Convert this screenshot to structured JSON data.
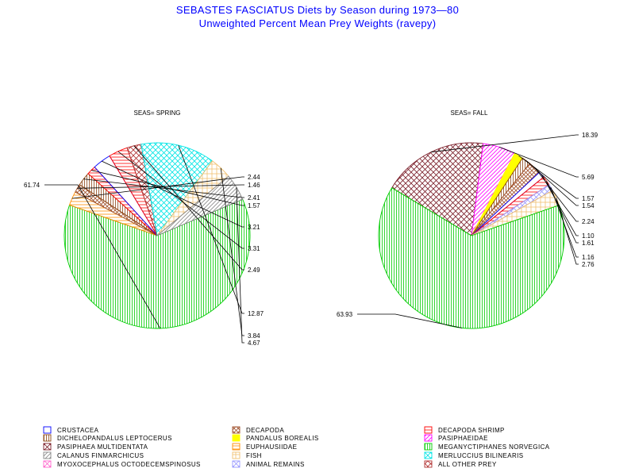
{
  "title": "SEBASTES FASCIATUS Diets by Season during 1973—80",
  "subtitle": "Unweighted Percent Mean Prey Weights (ravepy)",
  "categories": [
    {
      "key": "crustacea",
      "label": "CRUSTACEA",
      "color": "#0000ff",
      "pattern": "box"
    },
    {
      "key": "decapoda",
      "label": "DECAPODA",
      "color": "#a0522d",
      "pattern": "xbox"
    },
    {
      "key": "decapoda-shrimp",
      "label": "DECAPODA SHRIMP",
      "color": "#ff0000",
      "pattern": "hline"
    },
    {
      "key": "dichelopandalus",
      "label": "DICHELOPANDALUS LEPTOCERUS",
      "color": "#8b4513",
      "pattern": "vline"
    },
    {
      "key": "pandalus",
      "label": "PANDALUS BOREALIS",
      "color": "#ffff00",
      "pattern": "solid"
    },
    {
      "key": "pasiphaeidae",
      "label": "PASIPHAEIDAE",
      "color": "#ff00ff",
      "pattern": "diag"
    },
    {
      "key": "pasiphaea",
      "label": "PASIPHAEA MULTIDENTATA",
      "color": "#7b1f2a",
      "pattern": "cross"
    },
    {
      "key": "euphausiidae",
      "label": "EUPHAUSIIDAE",
      "color": "#ff8c00",
      "pattern": "hline"
    },
    {
      "key": "meganyctiphanes",
      "label": "MEGANYCTIPHANES NORVEGICA",
      "color": "#00cc00",
      "pattern": "vline"
    },
    {
      "key": "calanus",
      "label": "CALANUS FINMARCHICUS",
      "color": "#888888",
      "pattern": "diag"
    },
    {
      "key": "fish",
      "label": "FISH",
      "color": "#f0c070",
      "pattern": "grid"
    },
    {
      "key": "merluccius",
      "label": "MERLUCCIUS BILINEARIS",
      "color": "#00e5e5",
      "pattern": "cross"
    },
    {
      "key": "myoxocephalus",
      "label": "MYOXOCEPHALUS OCTODECEMSPINOSUS",
      "color": "#ff66cc",
      "pattern": "cross"
    },
    {
      "key": "animal-remains",
      "label": "ANIMAL REMAINS",
      "color": "#9999ff",
      "pattern": "cross"
    },
    {
      "key": "all-other",
      "label": "ALL OTHER PREY",
      "color": "#b03030",
      "pattern": "cross"
    }
  ],
  "chart_data": [
    {
      "type": "pie",
      "title": "SEAS= SPRING",
      "slices": [
        {
          "category": "meganyctiphanes",
          "value": 61.74,
          "label": "61.74"
        },
        {
          "category": "euphausiidae",
          "value": 2.44,
          "label": "2.44"
        },
        {
          "category": "decapoda",
          "value": 1.46,
          "label": "1.46"
        },
        {
          "category": "dichelopandalus",
          "value": 2.41,
          "label": "2.41"
        },
        {
          "category": "decapoda-shrimp",
          "value": 1.57,
          "label": "1.57"
        },
        {
          "category": "crustacea",
          "value": 3.21,
          "label": "3.21"
        },
        {
          "category": "decapoda-shrimp",
          "value": 3.31,
          "label": "3.31"
        },
        {
          "category": "all-other",
          "value": 2.49,
          "label": "2.49"
        },
        {
          "category": "merluccius",
          "value": 12.87,
          "label": "12.87"
        },
        {
          "category": "fish",
          "value": 3.84,
          "label": "3.84"
        },
        {
          "category": "calanus",
          "value": 4.67,
          "label": "4.67"
        }
      ]
    },
    {
      "type": "pie",
      "title": "SEAS= FALL",
      "slices": [
        {
          "category": "pasiphaea",
          "value": 18.39,
          "label": "18.39"
        },
        {
          "category": "pasiphaeidae",
          "value": 5.69,
          "label": "5.69"
        },
        {
          "category": "pandalus",
          "value": 1.57,
          "label": "1.57"
        },
        {
          "category": "dichelopandalus",
          "value": 1.54,
          "label": "1.54"
        },
        {
          "category": "decapoda",
          "value": 2.24,
          "label": "2.24"
        },
        {
          "category": "crustacea",
          "value": 1.1,
          "label": "1.10"
        },
        {
          "category": "decapoda-shrimp",
          "value": 1.61,
          "label": "1.61"
        },
        {
          "category": "animal-remains",
          "value": 1.16,
          "label": "1.16"
        },
        {
          "category": "fish",
          "value": 2.76,
          "label": "2.76"
        },
        {
          "category": "meganyctiphanes",
          "value": 63.93,
          "label": "63.93"
        }
      ]
    }
  ]
}
